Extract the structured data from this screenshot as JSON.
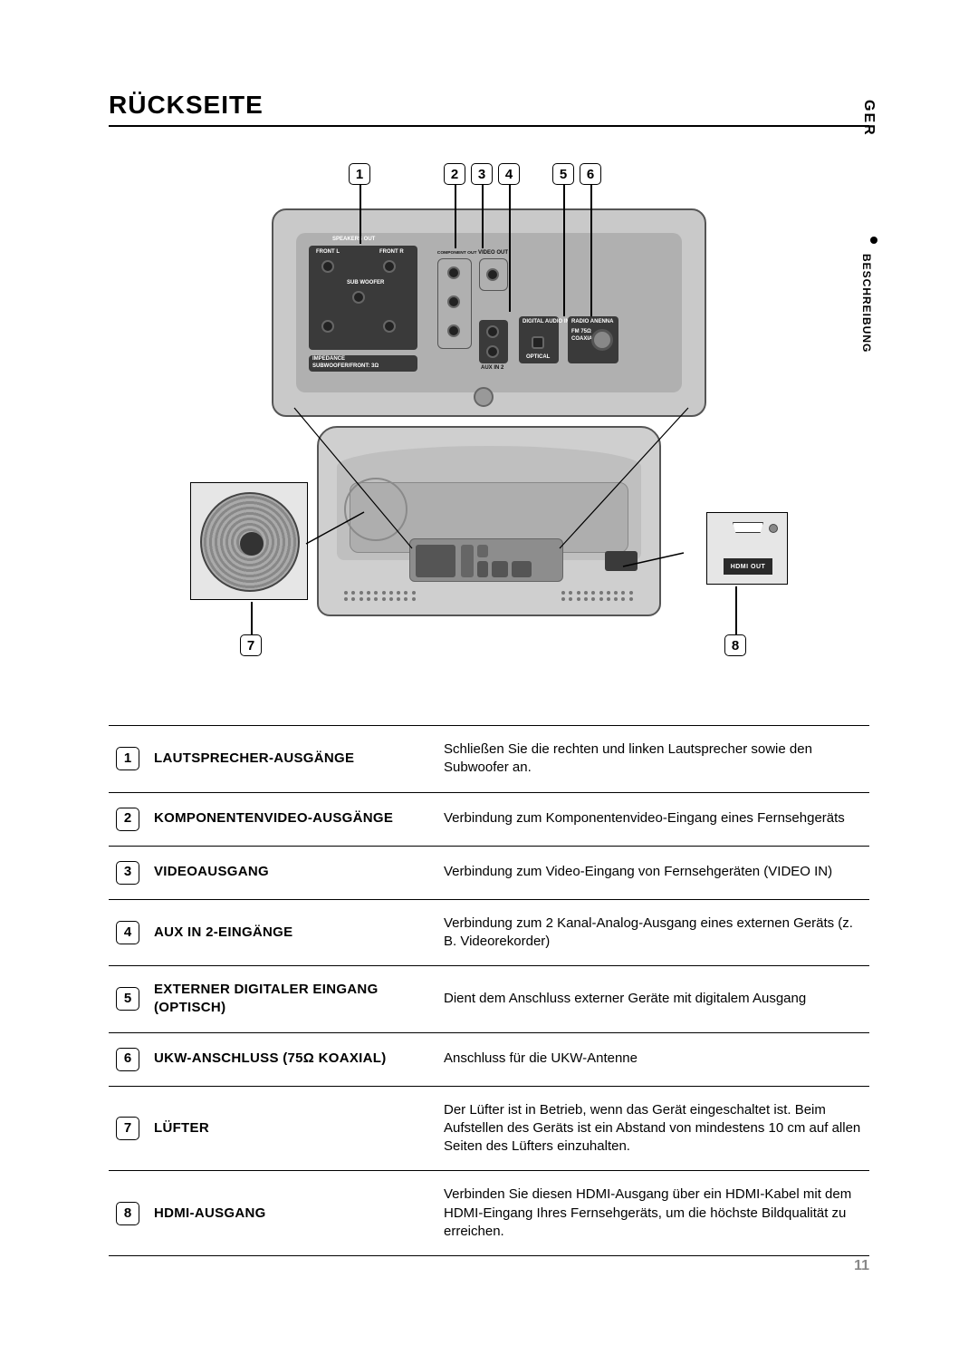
{
  "section_title": "RÜCKSEITE",
  "side": {
    "lang": "GER",
    "section": "BESCHREIBUNG"
  },
  "page_number": "11",
  "diagram": {
    "callouts_top": [
      "1",
      "2",
      "3",
      "4",
      "5",
      "6"
    ],
    "callouts_bottom": [
      "7",
      "8"
    ],
    "labels": {
      "speakers_out": "SPEAKERS OUT",
      "front_l": "FRONT L",
      "front_r": "FRONT R",
      "sub_woofer": "SUB WOOFER",
      "impedance": "IMPEDANCE",
      "impedance_val": "SUBWOOFER/FRONT: 3Ω",
      "component_out": "COMPONENT OUT",
      "video_out": "VIDEO OUT",
      "aux_in_2": "AUX IN 2",
      "digital_audio_in": "DIGITAL AUDIO IN",
      "optical": "OPTICAL",
      "radio_antenna": "RADIO ANENNA",
      "fm75": "FM 75Ω",
      "coaxial": "COAXIAL",
      "hdmi_out": "HDMI OUT"
    }
  },
  "table": [
    {
      "num": "1",
      "name": "LAUTSPRECHER-AUSGÄNGE",
      "desc": "Schließen Sie die rechten und linken Lautsprecher sowie den Subwoofer an."
    },
    {
      "num": "2",
      "name": "KOMPONENTENVIDEO-AUSGÄNGE",
      "desc": "Verbindung zum Komponentenvideo-Eingang eines Fernsehgeräts"
    },
    {
      "num": "3",
      "name": "VIDEOAUSGANG",
      "desc": "Verbindung zum Video-Eingang von Fernsehgeräten (VIDEO IN)"
    },
    {
      "num": "4",
      "name": "AUX IN 2-EINGÄNGE",
      "desc": "Verbindung zum 2 Kanal-Analog-Ausgang eines externen Geräts (z. B. Videorekorder)"
    },
    {
      "num": "5",
      "name": "EXTERNER DIGITALER EINGANG (OPTISCH)",
      "desc": "Dient dem Anschluss externer Geräte mit digitalem Ausgang"
    },
    {
      "num": "6",
      "name": "UKW-ANSCHLUSS (75Ω KOAXIAL)",
      "desc": "Anschluss für die UKW-Antenne"
    },
    {
      "num": "7",
      "name": "LÜFTER",
      "desc": "Der Lüfter ist in Betrieb, wenn das Gerät eingeschaltet ist. Beim Aufstellen des Geräts ist ein Abstand von mindestens 10 cm auf allen Seiten des Lüfters einzuhalten."
    },
    {
      "num": "8",
      "name": "HDMI-AUSGANG",
      "desc": "Verbinden Sie diesen HDMI-Ausgang über ein HDMI-Kabel mit dem HDMI-Eingang Ihres Fernsehgeräts, um die höchste Bildqualität zu erreichen."
    }
  ],
  "colors": {
    "text": "#000000",
    "page_num": "#888888",
    "panel_bg": "#c9c9c9",
    "panel_inner": "#b0b0b0",
    "dark_block": "#3a3a3a"
  }
}
